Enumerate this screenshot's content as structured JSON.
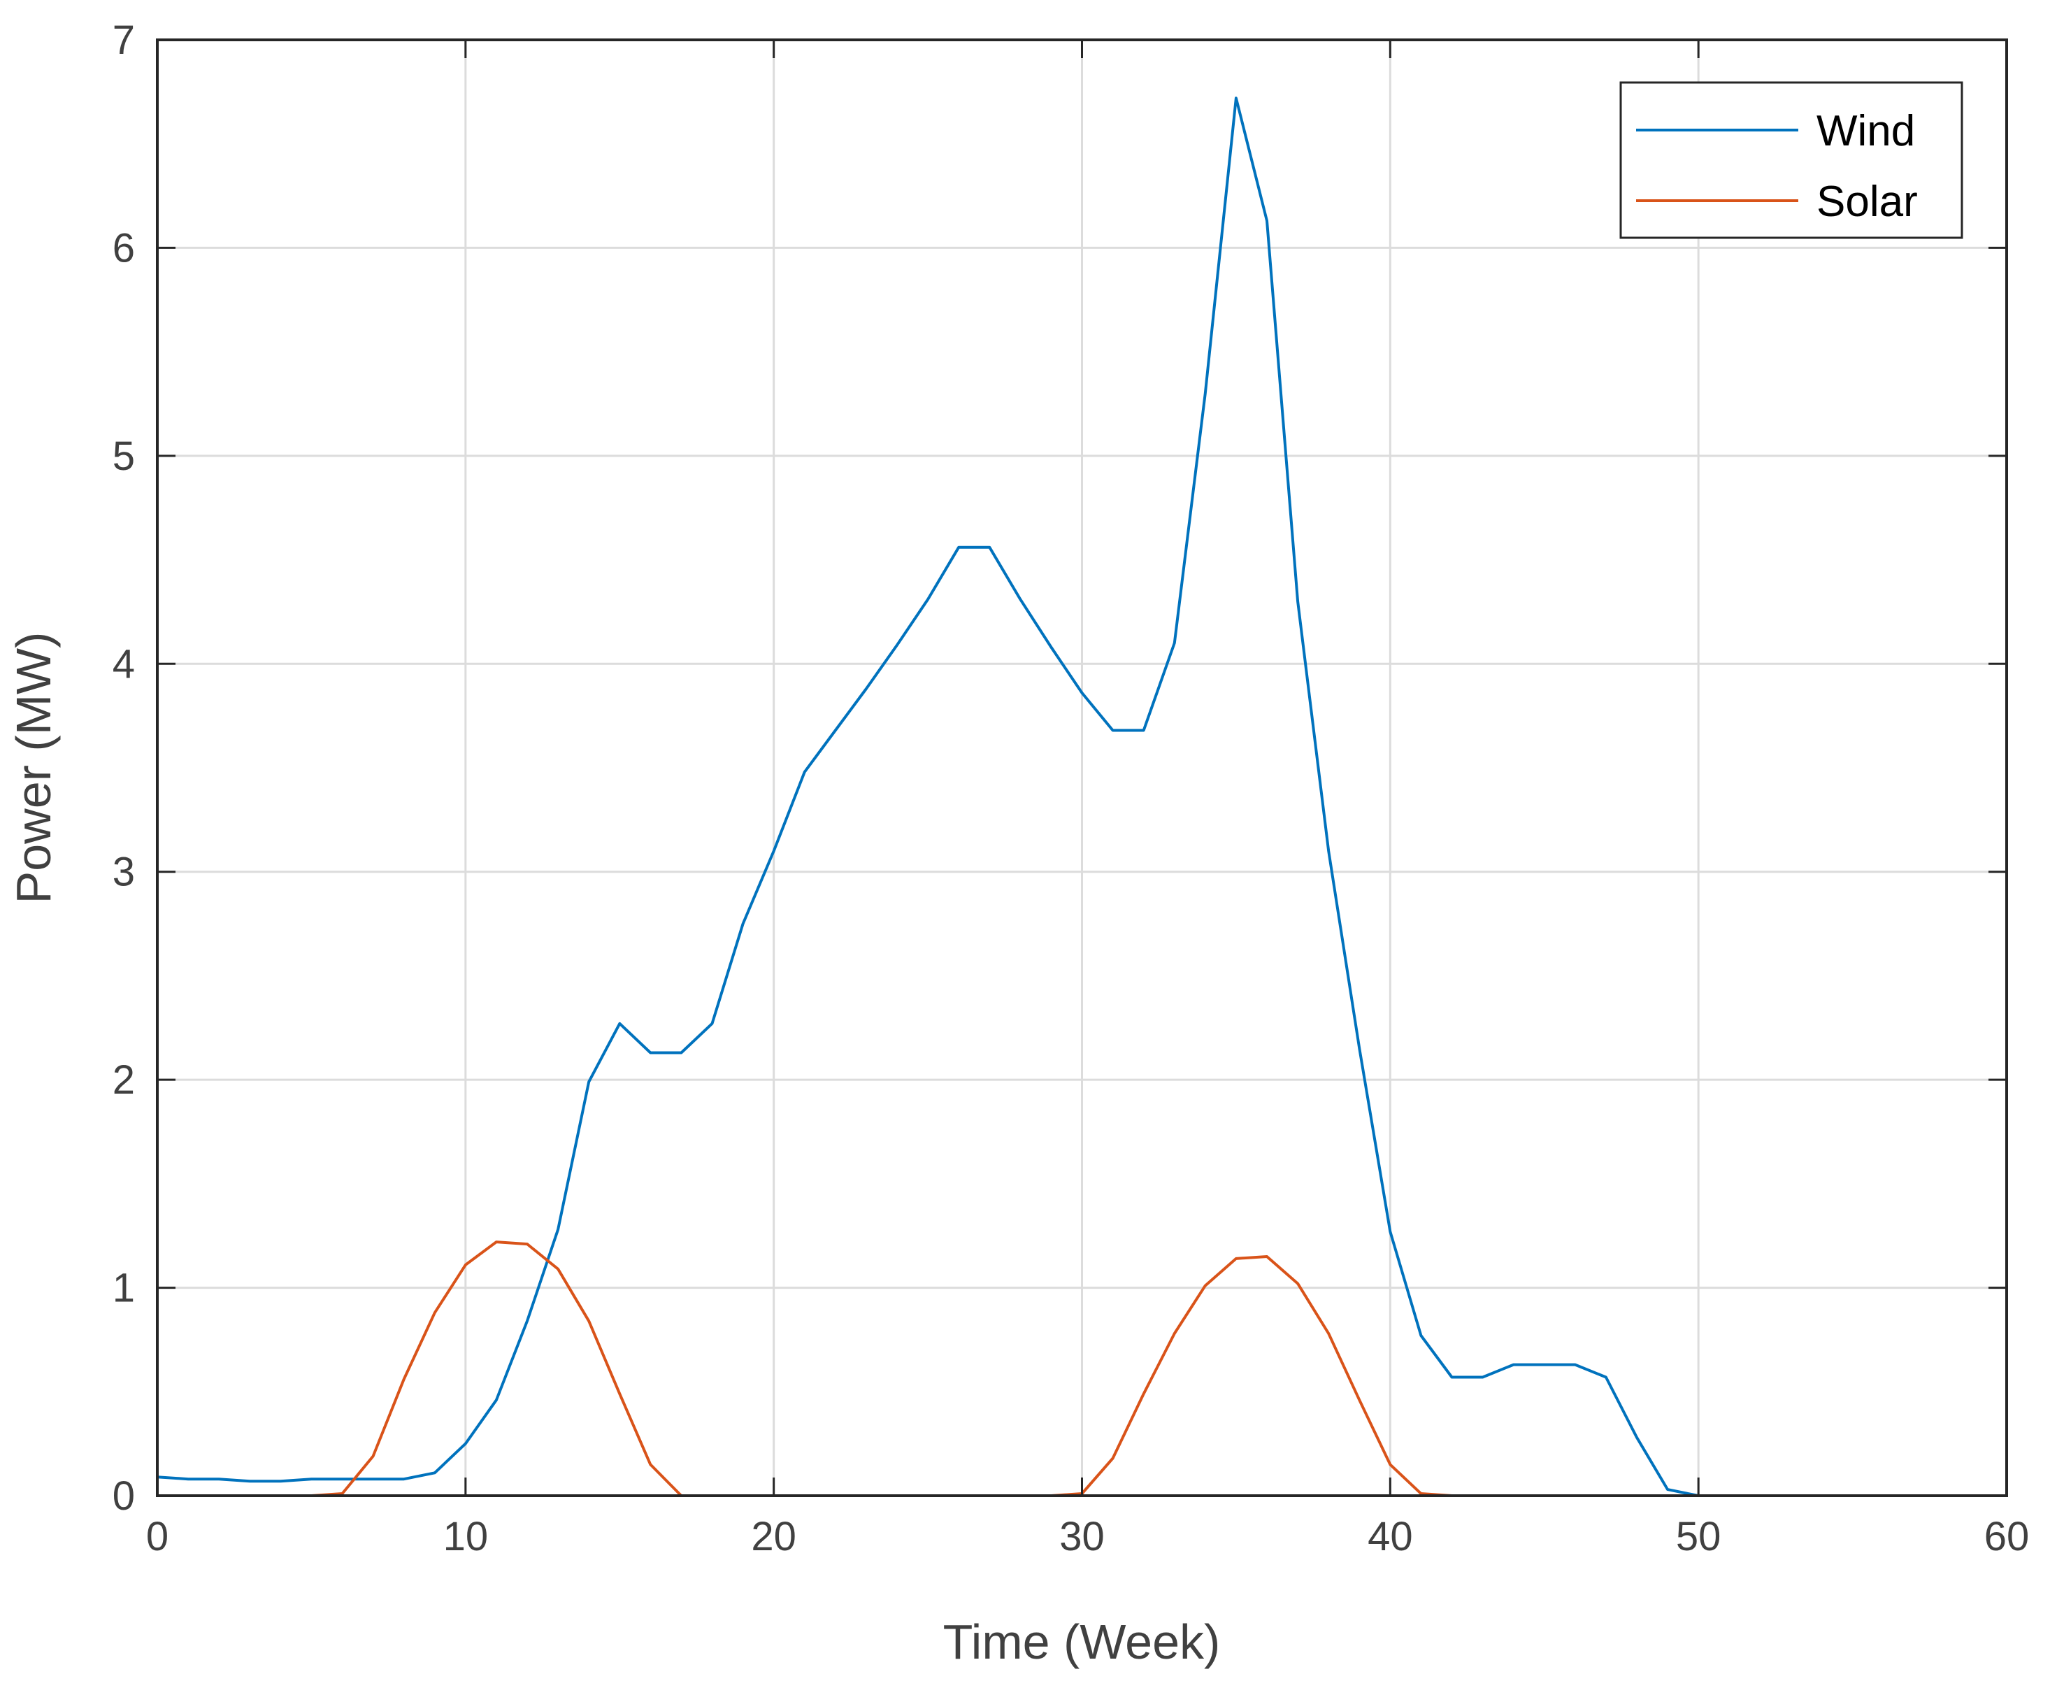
{
  "chart_data": {
    "type": "line",
    "title": "",
    "xlabel": "Time (Week)",
    "ylabel": "Power (MW)",
    "xlim": [
      0,
      60
    ],
    "ylim": [
      0,
      7
    ],
    "xticks": [
      0,
      10,
      20,
      30,
      40,
      50,
      60
    ],
    "yticks": [
      0,
      1,
      2,
      3,
      4,
      5,
      6,
      7
    ],
    "grid": true,
    "legend": "top-right",
    "series": [
      {
        "name": "Wind",
        "color": "#0072BD",
        "x": [
          0,
          1,
          2,
          3,
          4,
          5,
          6,
          7,
          8,
          9,
          10,
          11,
          12,
          13,
          14,
          15,
          16,
          17,
          18,
          19,
          20,
          21,
          22,
          23,
          24,
          25,
          26,
          27,
          28,
          29,
          30,
          31,
          32,
          33,
          34,
          35,
          36,
          37,
          38,
          39,
          40,
          41,
          42,
          43,
          44,
          45,
          46,
          47,
          48,
          49,
          50,
          51
        ],
        "y": [
          0.09,
          0.08,
          0.08,
          0.07,
          0.07,
          0.08,
          0.08,
          0.08,
          0.08,
          0.11,
          0.25,
          0.46,
          0.84,
          1.28,
          1.99,
          2.27,
          2.13,
          2.13,
          2.27,
          2.75,
          3.1,
          3.48,
          3.68,
          3.88,
          4.09,
          4.31,
          4.56,
          4.56,
          4.31,
          4.08,
          3.86,
          3.68,
          3.68,
          4.1,
          5.3,
          6.72,
          6.13,
          4.3,
          3.1,
          2.15,
          1.27,
          0.77,
          0.57,
          0.57,
          0.63,
          0.63,
          0.63,
          0.57,
          0.28,
          0.03,
          0.0,
          0.0
        ]
      },
      {
        "name": "Solar",
        "color": "#D95319",
        "x": [
          0,
          1,
          2,
          3,
          4,
          5,
          6,
          7,
          8,
          9,
          10,
          11,
          12,
          13,
          14,
          15,
          16,
          17,
          18,
          19,
          20,
          21,
          22,
          23,
          24,
          25,
          26,
          27,
          28,
          29,
          30,
          31,
          32,
          33,
          34,
          35,
          36,
          37,
          38,
          39,
          40,
          41,
          42,
          43,
          44,
          45,
          46,
          47,
          48,
          49,
          50,
          51
        ],
        "y": [
          0,
          0,
          0,
          0,
          0,
          0,
          0.01,
          0.19,
          0.56,
          0.88,
          1.11,
          1.22,
          1.21,
          1.09,
          0.84,
          0.49,
          0.15,
          0,
          0,
          0,
          0,
          0,
          0,
          0,
          0,
          0,
          0,
          0,
          0,
          0,
          0.01,
          0.18,
          0.49,
          0.78,
          1.01,
          1.14,
          1.15,
          1.02,
          0.78,
          0.46,
          0.15,
          0.01,
          0,
          0,
          0,
          0,
          0,
          0,
          0,
          0,
          0,
          0
        ]
      }
    ]
  }
}
